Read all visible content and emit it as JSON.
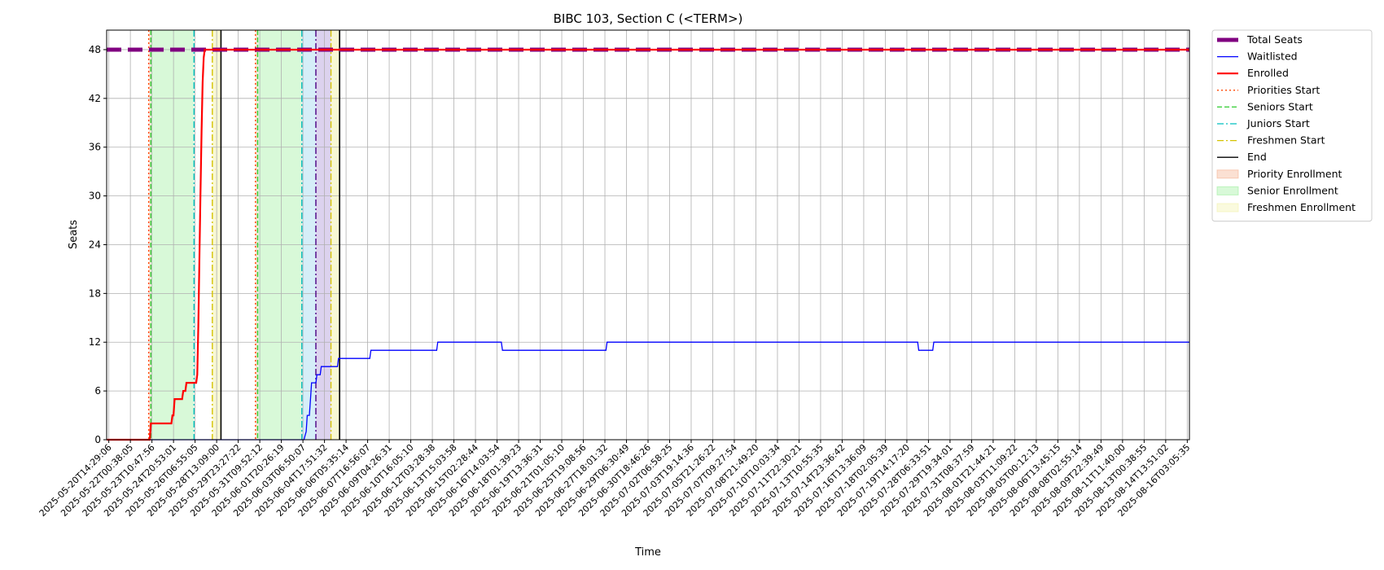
{
  "chart_data": {
    "type": "line",
    "title": "BIBC 103, Section C (<TERM>)",
    "xlabel": "Time",
    "ylabel": "Seats",
    "ylim": [
      0,
      50.4
    ],
    "yticks": [
      0,
      6,
      12,
      18,
      24,
      30,
      36,
      42,
      48
    ],
    "grid": true,
    "legend_position": "outside-right-top",
    "x_tick_labels": [
      "2025-05-20T14:29:06",
      "2025-05-22T00:38:05",
      "2025-05-23T10:47:56",
      "2025-05-24T20:53:01",
      "2025-05-26T06:55:05",
      "2025-05-28T13:09:00",
      "2025-05-29T23:27:22",
      "2025-05-31T09:52:12",
      "2025-06-01T20:26:19",
      "2025-06-03T06:50:07",
      "2025-06-04T17:51:32",
      "2025-06-06T05:35:14",
      "2025-06-07T16:56:07",
      "2025-06-09T04:26:31",
      "2025-06-10T16:05:10",
      "2025-06-12T03:28:38",
      "2025-06-13T15:03:58",
      "2025-06-15T02:28:44",
      "2025-06-16T14:03:54",
      "2025-06-18T01:39:23",
      "2025-06-19T13:36:31",
      "2025-06-21T01:05:10",
      "2025-06-25T19:08:56",
      "2025-06-27T18:01:32",
      "2025-06-29T06:30:49",
      "2025-06-30T18:46:26",
      "2025-07-02T06:58:25",
      "2025-07-03T19:14:36",
      "2025-07-05T21:26:22",
      "2025-07-07T09:27:54",
      "2025-07-08T21:49:20",
      "2025-07-10T10:03:34",
      "2025-07-11T22:30:21",
      "2025-07-13T10:55:35",
      "2025-07-14T23:36:42",
      "2025-07-16T13:36:09",
      "2025-07-18T02:05:39",
      "2025-07-19T14:17:20",
      "2025-07-28T06:33:51",
      "2025-07-29T19:34:01",
      "2025-07-31T08:37:59",
      "2025-08-01T21:44:21",
      "2025-08-03T11:09:22",
      "2025-08-05T00:12:13",
      "2025-08-06T13:45:15",
      "2025-08-08T02:55:14",
      "2025-08-09T22:39:49",
      "2025-08-11T11:40:00",
      "2025-08-13T00:38:55",
      "2025-08-14T13:51:02",
      "2025-08-16T03:05:35"
    ],
    "x_range_ticks": [
      -0.1,
      50.1
    ],
    "series": [
      {
        "name": "Total Seats",
        "color": "#800080",
        "style": "dashed-thick",
        "points": [
          [
            -0.1,
            48
          ],
          [
            50.1,
            48
          ]
        ]
      },
      {
        "name": "Waitlisted",
        "color": "#0000ff",
        "style": "solid",
        "points": [
          [
            -0.1,
            0
          ],
          [
            9.05,
            0
          ],
          [
            9.1,
            0.5
          ],
          [
            9.15,
            1
          ],
          [
            9.2,
            3
          ],
          [
            9.3,
            3
          ],
          [
            9.35,
            5
          ],
          [
            9.4,
            7
          ],
          [
            9.6,
            7
          ],
          [
            9.65,
            8
          ],
          [
            9.8,
            8
          ],
          [
            9.85,
            9
          ],
          [
            10.6,
            9
          ],
          [
            10.65,
            10
          ],
          [
            12.1,
            10
          ],
          [
            12.15,
            11
          ],
          [
            15.2,
            11
          ],
          [
            15.25,
            12
          ],
          [
            18.2,
            12
          ],
          [
            18.25,
            11
          ],
          [
            23.05,
            11
          ],
          [
            23.1,
            12
          ],
          [
            37.5,
            12
          ],
          [
            37.55,
            11
          ],
          [
            38.2,
            11
          ],
          [
            38.25,
            12
          ],
          [
            50.1,
            12
          ]
        ]
      },
      {
        "name": "Enrolled",
        "color": "#ff0000",
        "style": "solid-thick",
        "points": [
          [
            -0.1,
            0
          ],
          [
            1.9,
            0
          ],
          [
            1.95,
            2
          ],
          [
            2.9,
            2
          ],
          [
            2.95,
            3
          ],
          [
            3.0,
            3
          ],
          [
            3.05,
            5
          ],
          [
            3.4,
            5
          ],
          [
            3.45,
            6
          ],
          [
            3.55,
            6
          ],
          [
            3.6,
            7
          ],
          [
            4.05,
            7
          ],
          [
            4.1,
            8
          ],
          [
            4.15,
            14
          ],
          [
            4.2,
            22
          ],
          [
            4.25,
            30
          ],
          [
            4.3,
            38
          ],
          [
            4.35,
            44
          ],
          [
            4.4,
            47
          ],
          [
            4.45,
            48
          ],
          [
            50.1,
            48
          ]
        ]
      }
    ],
    "vlines": [
      {
        "name": "Priorities Start",
        "color": "#ff4500",
        "style": "dotted",
        "x": [
          1.85,
          6.8
        ]
      },
      {
        "name": "Seniors Start",
        "color": "#32cd32",
        "style": "dashed",
        "x": [
          1.95,
          6.9
        ]
      },
      {
        "name": "Juniors Start",
        "color": "#00bfbf",
        "style": "dashdot",
        "x": [
          3.95,
          8.95
        ]
      },
      {
        "name": "Freshmen Start",
        "color": "#d4c200",
        "style": "dashdot",
        "x": [
          4.8,
          10.3
        ]
      },
      {
        "name": "End",
        "color": "#000000",
        "style": "solid",
        "x": [
          5.2,
          10.7
        ]
      },
      {
        "name": "",
        "color": "#4b0082",
        "style": "dashdot",
        "x": [
          9.6
        ]
      }
    ],
    "spans": [
      {
        "name": "Priority Enrollment",
        "color": "#f4a582",
        "alpha": 0.35,
        "ranges": [
          [
            1.85,
            1.95
          ],
          [
            6.8,
            6.9
          ]
        ]
      },
      {
        "name": "Senior Enrollment",
        "color": "#90ee90",
        "alpha": 0.35,
        "ranges": [
          [
            1.95,
            3.95
          ],
          [
            6.9,
            8.95
          ]
        ]
      },
      {
        "name": "",
        "color": "#87ceeb",
        "alpha": 0.35,
        "ranges": [
          [
            8.95,
            9.6
          ]
        ]
      },
      {
        "name": "",
        "color": "#b19cd9",
        "alpha": 0.45,
        "ranges": [
          [
            9.6,
            10.3
          ]
        ]
      },
      {
        "name": "Freshmen Enrollment",
        "color": "#f0f0a0",
        "alpha": 0.45,
        "ranges": [
          [
            4.8,
            5.2
          ],
          [
            10.3,
            10.7
          ]
        ]
      }
    ],
    "legend": [
      {
        "label": "Total Seats",
        "kind": "line",
        "color": "#800080",
        "style": "dashed-thick"
      },
      {
        "label": "Waitlisted",
        "kind": "line",
        "color": "#0000ff",
        "style": "solid"
      },
      {
        "label": "Enrolled",
        "kind": "line",
        "color": "#ff0000",
        "style": "solid-thick"
      },
      {
        "label": "Priorities Start",
        "kind": "line",
        "color": "#ff4500",
        "style": "dotted"
      },
      {
        "label": "Seniors Start",
        "kind": "line",
        "color": "#32cd32",
        "style": "dashed"
      },
      {
        "label": "Juniors Start",
        "kind": "line",
        "color": "#00bfbf",
        "style": "dashdot"
      },
      {
        "label": "Freshmen Start",
        "kind": "line",
        "color": "#d4c200",
        "style": "dashdot"
      },
      {
        "label": "End",
        "kind": "line",
        "color": "#000000",
        "style": "solid"
      },
      {
        "label": "Priority Enrollment",
        "kind": "patch",
        "color": "#f4a582"
      },
      {
        "label": "Senior Enrollment",
        "kind": "patch",
        "color": "#90ee90"
      },
      {
        "label": "Freshmen Enrollment",
        "kind": "patch",
        "color": "#f0f0a0"
      }
    ]
  }
}
